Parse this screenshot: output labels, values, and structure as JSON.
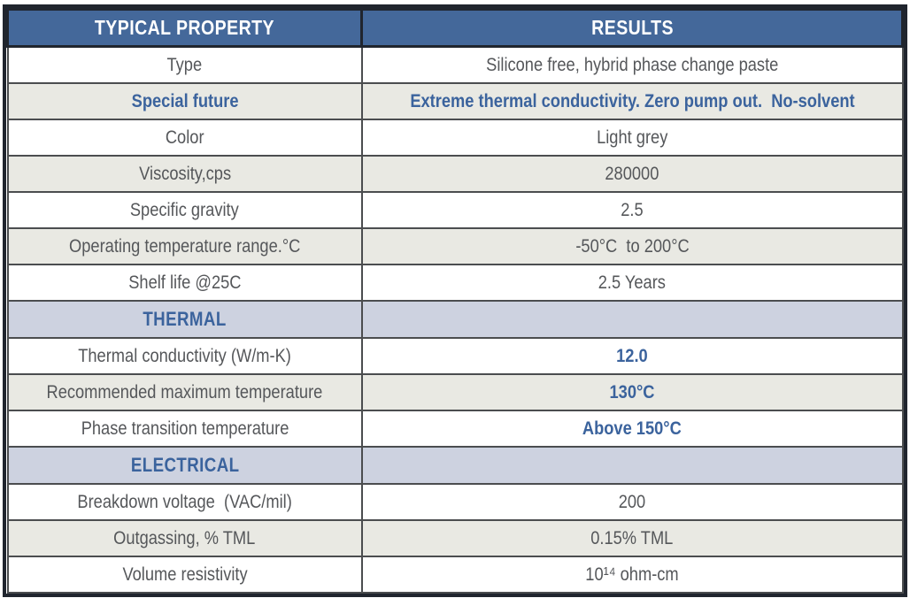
{
  "table": {
    "header": {
      "property": "TYPICAL PROPERTY",
      "results": "RESULTS"
    },
    "rows": [
      {
        "property": "Type",
        "result": "Silicone free, hybrid phase change paste",
        "shade": "white",
        "kind": "data",
        "property_blue": false,
        "result_blue": false
      },
      {
        "property": "Special future",
        "result": "Extreme thermal conductivity. Zero pump out.  No-solvent",
        "shade": "grey",
        "kind": "data",
        "property_blue": true,
        "result_blue": true
      },
      {
        "property": "Color",
        "result": "Light grey",
        "shade": "white",
        "kind": "data",
        "property_blue": false,
        "result_blue": false
      },
      {
        "property": "Viscosity,cps",
        "result": "280000",
        "shade": "grey",
        "kind": "data",
        "property_blue": false,
        "result_blue": false
      },
      {
        "property": "Specific gravity",
        "result": "2.5",
        "shade": "white",
        "kind": "data",
        "property_blue": false,
        "result_blue": false
      },
      {
        "property": "Operating temperature range.°C",
        "result": "-50°C  to 200°C",
        "shade": "grey",
        "kind": "data",
        "property_blue": false,
        "result_blue": false
      },
      {
        "property": "Shelf life @25C",
        "result": "2.5 Years",
        "shade": "white",
        "kind": "data",
        "property_blue": false,
        "result_blue": false
      },
      {
        "property": "THERMAL",
        "result": "",
        "shade": "section",
        "kind": "section",
        "property_blue": true,
        "result_blue": false
      },
      {
        "property": "Thermal conductivity (W/m-K)",
        "result": "12.0",
        "shade": "white",
        "kind": "data",
        "property_blue": false,
        "result_blue": true
      },
      {
        "property": "Recommended maximum temperature",
        "result": "130°C",
        "shade": "grey",
        "kind": "data",
        "property_blue": false,
        "result_blue": true
      },
      {
        "property": "Phase transition temperature",
        "result": "Above 150°C",
        "shade": "white",
        "kind": "data",
        "property_blue": false,
        "result_blue": true
      },
      {
        "property": "ELECTRICAL",
        "result": "",
        "shade": "section",
        "kind": "section",
        "property_blue": true,
        "result_blue": false
      },
      {
        "property": "Breakdown voltage  (VAC/mil)",
        "result": "200",
        "shade": "white",
        "kind": "data",
        "property_blue": false,
        "result_blue": false
      },
      {
        "property": "Outgassing, % TML",
        "result": "0.15% TML",
        "shade": "grey",
        "kind": "data",
        "property_blue": false,
        "result_blue": false
      },
      {
        "property": "Volume resistivity",
        "result": "10¹⁴ ohm-cm",
        "shade": "white",
        "kind": "data",
        "property_blue": false,
        "result_blue": false
      }
    ],
    "colors": {
      "header_bg": "#44689a",
      "header_text": "#ffffff",
      "section_bg": "#cdd2e0",
      "grey_row_bg": "#e9e9e3",
      "white_row_bg": "#ffffff",
      "blue_text": "#3b639d",
      "dark_text": "#55575a",
      "grid_line": "#4b4d4f",
      "outer_border": "#20252e"
    }
  }
}
